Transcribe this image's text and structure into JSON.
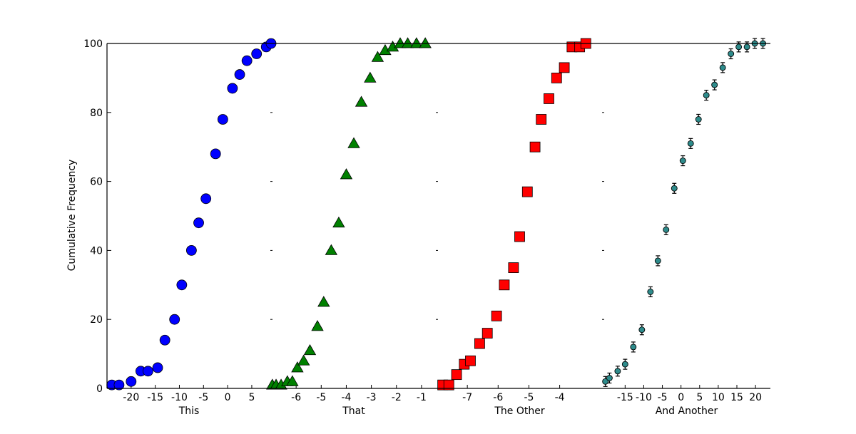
{
  "chart_data": {
    "type": "scatter",
    "ylabel": "Cumulative Frequency",
    "ylim": [
      0,
      100
    ],
    "yticks": [
      0,
      20,
      40,
      60,
      80,
      100
    ],
    "panels": [
      {
        "xlabel": "This",
        "xlim": [
          -25,
          9
        ],
        "xticks": [
          -20,
          -15,
          -10,
          -5,
          0,
          5
        ],
        "marker": "circle",
        "color": "#0000ff",
        "x": [
          -24,
          -22.5,
          -20,
          -18,
          -16.5,
          -14.5,
          -13,
          -11,
          -9.5,
          -7.5,
          -6,
          -4.5,
          -2.5,
          -1,
          1,
          2.5,
          4,
          6,
          8,
          9
        ],
        "y": [
          1,
          1,
          2,
          5,
          5,
          6,
          14,
          20,
          30,
          40,
          48,
          55,
          68,
          78,
          87,
          91,
          95,
          97,
          99,
          100
        ]
      },
      {
        "xlabel": "That",
        "xlim": [
          -7,
          -0.4
        ],
        "xticks": [
          -6,
          -5,
          -4,
          -3,
          -2,
          -1
        ],
        "marker": "triangle",
        "color": "#008000",
        "x": [
          -6.95,
          -6.8,
          -6.6,
          -6.35,
          -6.15,
          -5.95,
          -5.7,
          -5.45,
          -5.15,
          -4.9,
          -4.6,
          -4.3,
          -4.0,
          -3.7,
          -3.4,
          -3.05,
          -2.75,
          -2.45,
          -2.15,
          -1.85,
          -1.55,
          -1.2,
          -0.85
        ],
        "y": [
          1,
          1,
          1,
          2,
          2,
          6,
          8,
          11,
          18,
          25,
          40,
          48,
          62,
          71,
          83,
          90,
          96,
          98,
          99,
          100,
          100,
          100,
          100
        ]
      },
      {
        "xlabel": "The Other",
        "xlim": [
          -8,
          -2.6
        ],
        "xticks": [
          -7,
          -6,
          -5,
          -4
        ],
        "marker": "square",
        "color": "#ff0000",
        "x": [
          -7.8,
          -7.6,
          -7.35,
          -7.1,
          -6.9,
          -6.6,
          -6.35,
          -6.05,
          -5.8,
          -5.5,
          -5.3,
          -5.05,
          -4.8,
          -4.6,
          -4.35,
          -4.1,
          -3.85,
          -3.6,
          -3.35,
          -3.15
        ],
        "y": [
          1,
          1,
          4,
          7,
          8,
          13,
          16,
          21,
          30,
          35,
          44,
          57,
          70,
          78,
          84,
          90,
          93,
          99,
          99,
          100
        ]
      },
      {
        "xlabel": "And Another",
        "xlim": [
          -21,
          24
        ],
        "xticks": [
          -15,
          -10,
          -5,
          0,
          5,
          10,
          15,
          20
        ],
        "marker": "circle-errorbar",
        "color": "#2e8b8b",
        "x": [
          -20.3,
          -19.2,
          -17,
          -15,
          -12.8,
          -10.5,
          -8.2,
          -6.2,
          -4,
          -1.8,
          0.5,
          2.6,
          4.7,
          6.8,
          9,
          11.2,
          13.4,
          15.5,
          17.7,
          19.8,
          22
        ],
        "y": [
          2,
          3,
          5,
          7,
          12,
          17,
          28,
          37,
          46,
          58,
          66,
          71,
          78,
          85,
          88,
          93,
          97,
          99,
          99,
          100,
          100
        ]
      }
    ]
  }
}
